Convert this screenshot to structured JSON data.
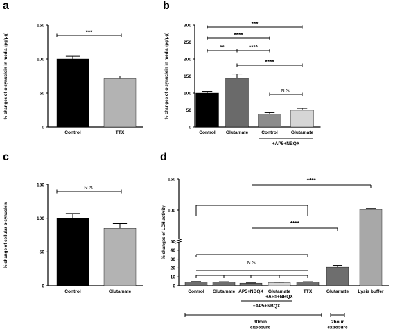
{
  "figure": {
    "panels": [
      "a",
      "b",
      "c",
      "d"
    ]
  },
  "chart_data": [
    {
      "id": "a",
      "type": "bar",
      "categories": [
        "Control",
        "TTX"
      ],
      "values": [
        100,
        71
      ],
      "errors": [
        4,
        4
      ],
      "colors": [
        "#000000",
        "#b3b3b3"
      ],
      "ylabel": "% changes of α-synuclein in media (pg/μg)",
      "ylim": [
        0,
        150
      ],
      "yticks": [
        0,
        50,
        100,
        150
      ],
      "brackets": [
        {
          "from": 0,
          "to": 1,
          "label": "***",
          "level": 1
        }
      ]
    },
    {
      "id": "b",
      "type": "bar",
      "categories": [
        "Control",
        "Glutamate",
        "Control",
        "Glutamate"
      ],
      "values": [
        100,
        143,
        38,
        49
      ],
      "errors": [
        5,
        13,
        4,
        6
      ],
      "colors": [
        "#000000",
        "#6a6a6a",
        "#8c8c8c",
        "#d6d6d6"
      ],
      "ylabel": "% changes of α-synuclein in media (pg/μg)",
      "ylim": [
        0,
        300
      ],
      "yticks": [
        0,
        50,
        100,
        150,
        200,
        250,
        300
      ],
      "group_label": "+AP5+NBQX",
      "group_members": [
        2,
        3
      ],
      "brackets": [
        {
          "from": 0,
          "to": 3,
          "label": "***",
          "level": 1
        },
        {
          "from": 0,
          "to": 2,
          "label": "****",
          "level": 2
        },
        {
          "from": 0,
          "to": 1,
          "label": "**",
          "level": 3
        },
        {
          "from": 1,
          "to": 2,
          "label": "****",
          "level": 3
        },
        {
          "from": 1,
          "to": 3,
          "label": "****",
          "level": 4
        },
        {
          "from": 2,
          "to": 3,
          "label": "N.S.",
          "level": 5
        }
      ]
    },
    {
      "id": "c",
      "type": "bar",
      "categories": [
        "Control",
        "Glutamate"
      ],
      "values": [
        100,
        85
      ],
      "errors": [
        7,
        7
      ],
      "colors": [
        "#000000",
        "#b3b3b3"
      ],
      "ylabel": "% change of cellular α-synuclein",
      "ylim": [
        0,
        150
      ],
      "yticks": [
        0,
        50,
        100,
        150
      ],
      "brackets": [
        {
          "from": 0,
          "to": 1,
          "label": "N.S.",
          "level": 1
        }
      ]
    },
    {
      "id": "d",
      "type": "bar",
      "categories": [
        "Control",
        "Glutamate",
        "AP5+NBQX",
        "Glutamate\n+AP5+NBQX",
        "TTX",
        "Glutamate",
        "Lysis buffer"
      ],
      "values": [
        4.5,
        4.3,
        3.0,
        3.6,
        4.3,
        21,
        101
      ],
      "errors": [
        0.3,
        0.3,
        0.3,
        0.5,
        0.3,
        2,
        1.5
      ],
      "colors": [
        "#6e6e6e",
        "#6e6e6e",
        "#6e6e6e",
        "#d6d6d6",
        "#6e6e6e",
        "#6e6e6e",
        "#a8a8a8"
      ],
      "ylabel": "% changes of LDH activity",
      "ylim": [
        0,
        150
      ],
      "yticks": [
        0,
        10,
        20,
        30,
        40,
        50,
        100,
        150
      ],
      "axis_break": true,
      "group_label": "+AP5+NBQX",
      "group_members": [
        2,
        3
      ],
      "exposure_labels": [
        {
          "label": "30min\nexposure",
          "members": [
            0,
            1,
            2,
            3,
            4
          ]
        },
        {
          "label": "2hour\nexposure",
          "members": [
            5
          ]
        }
      ],
      "annotations": [
        {
          "label": "N.S.",
          "spans": [
            0,
            4
          ]
        },
        {
          "label": "****",
          "spans": [
            0,
            4
          ],
          "to": 5
        },
        {
          "label": "****",
          "spans": [
            0,
            4
          ],
          "to": 6
        }
      ]
    }
  ]
}
